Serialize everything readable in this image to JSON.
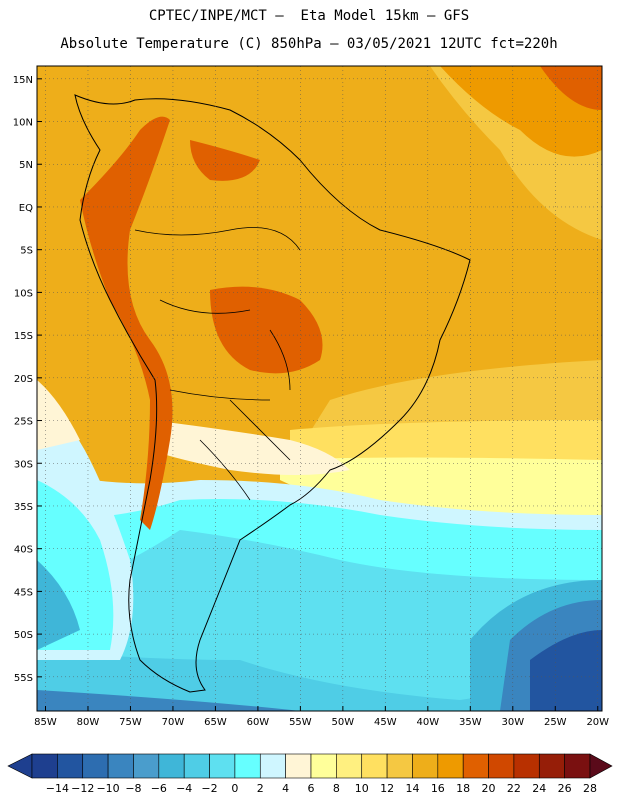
{
  "header": {
    "line1": "CPTEC/INPE/MCT –  Eta Model 15km – GFS",
    "line2": "Absolute Temperature (C) 850hPa – 03/05/2021 12UTC fct=220h"
  },
  "map": {
    "lat_labels": [
      "15N",
      "10N",
      "5N",
      "EQ",
      "5S",
      "10S",
      "15S",
      "20S",
      "25S",
      "30S",
      "35S",
      "40S",
      "45S",
      "50S",
      "55S"
    ],
    "lon_labels": [
      "85W",
      "80W",
      "75W",
      "70W",
      "65W",
      "60W",
      "55W",
      "50W",
      "45W",
      "40W",
      "35W",
      "30W",
      "25W",
      "20W"
    ]
  },
  "colorbar": {
    "labels": [
      "-14",
      "-12",
      "-10",
      "-8",
      "-6",
      "-4",
      "-2",
      "0",
      "2",
      "4",
      "6",
      "8",
      "10",
      "12",
      "14",
      "16",
      "18",
      "20",
      "22",
      "24",
      "26",
      "28"
    ],
    "colors": [
      "#1e3f8f",
      "#2255a0",
      "#2d6db0",
      "#3a85bf",
      "#4a9dcc",
      "#3fb6d8",
      "#4fcde6",
      "#5ee0f0",
      "#66ffff",
      "#cff6ff",
      "#fff5d6",
      "#ffff9a",
      "#fff080",
      "#ffe060",
      "#f5c842",
      "#eeae1a",
      "#ee9a00",
      "#e06000",
      "#d04800",
      "#b83000",
      "#961e08",
      "#7a1010"
    ]
  }
}
